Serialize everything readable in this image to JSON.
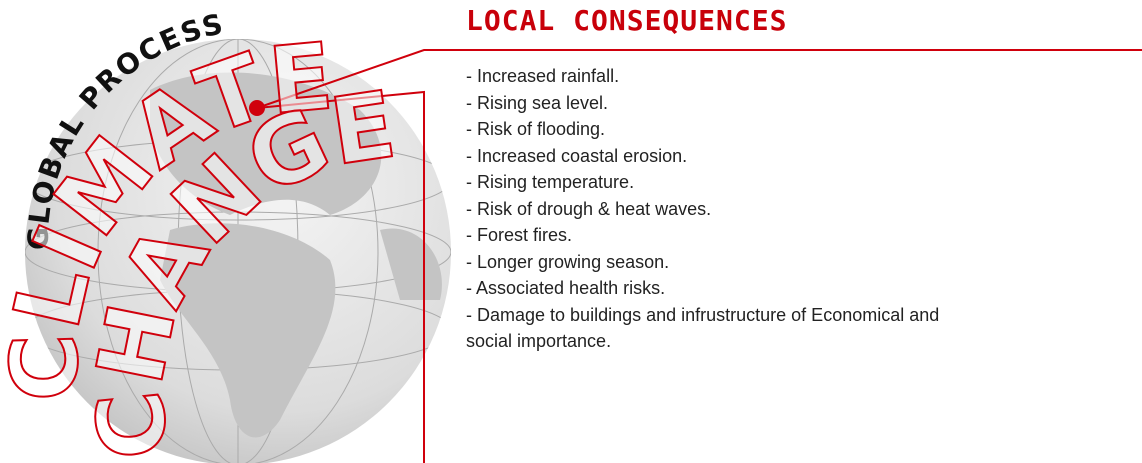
{
  "globe": {
    "label": "GLOBAL PROCESS",
    "word1": "CLIMATE",
    "word2": "CHANGE"
  },
  "consequences": {
    "title": "LOCAL CONSEQUENCES",
    "items": [
      "- Increased rainfall.",
      "- Rising sea level.",
      "- Risk of flooding.",
      "- Increased coastal erosion.",
      "- Rising temperature.",
      "- Risk of drough & heat waves.",
      "- Forest fires.",
      "- Longer growing season.",
      "- Associated health risks.",
      "- Damage to buildings and infrustructure of Economical and social importance."
    ]
  }
}
